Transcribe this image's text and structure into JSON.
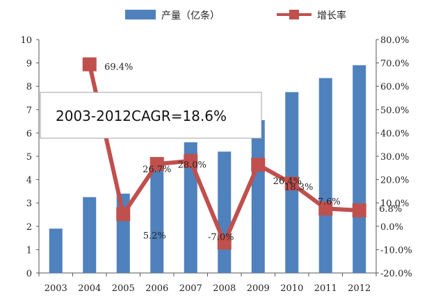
{
  "chart_data": {
    "type": "bar",
    "categories": [
      "2003",
      "2004",
      "2005",
      "2006",
      "2007",
      "2008",
      "2009",
      "2010",
      "2011",
      "2012"
    ],
    "series": [
      {
        "name": "产量（亿条）",
        "type": "bar",
        "axis": "left",
        "values": [
          1.9,
          3.25,
          3.4,
          4.5,
          5.6,
          5.2,
          6.55,
          7.75,
          8.35,
          8.9
        ],
        "color": "#4f81bd"
      },
      {
        "name": "增长率",
        "type": "line",
        "axis": "right",
        "values": [
          null,
          69.4,
          5.2,
          26.7,
          28.0,
          -7.0,
          26.4,
          18.3,
          7.6,
          6.8
        ],
        "color": "#c0504d"
      }
    ],
    "data_labels": [
      "69.4%",
      "5.2%",
      "26.7%",
      "28.0%",
      "-7.0%",
      "26.4%",
      "18.3%",
      "7.6%",
      "6.8%"
    ],
    "y_left": {
      "min": 0,
      "max": 10,
      "ticks": [
        "0",
        "1",
        "2",
        "3",
        "4",
        "5",
        "6",
        "7",
        "8",
        "9",
        "10"
      ]
    },
    "y_right": {
      "min": -20,
      "max": 80,
      "ticks": [
        "-20.0%",
        "-10.0%",
        "0.0%",
        "10.0%",
        "20.0%",
        "30.0%",
        "40.0%",
        "50.0%",
        "60.0%",
        "70.0%",
        "80.0%"
      ]
    },
    "annotation": "2003-2012CAGR=18.6%",
    "legend": [
      "产量（亿条）",
      "增长率"
    ],
    "legend_position": "top",
    "grid": false
  }
}
